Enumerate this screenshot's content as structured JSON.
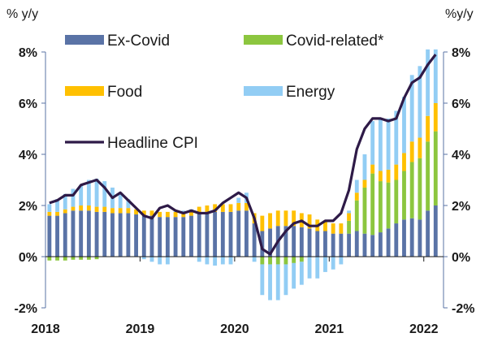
{
  "chart_data": {
    "type": "bar",
    "left_axis_label": "% y/y",
    "right_axis_label": "%y/y",
    "ylim": [
      -2,
      8
    ],
    "y_ticks": [
      -2,
      0,
      2,
      4,
      6,
      8
    ],
    "y_tick_labels": [
      "-2%",
      "0%",
      "2%",
      "4%",
      "6%",
      "8%"
    ],
    "x_tick_labels": [
      "2018",
      "2019",
      "2020",
      "2021",
      "2022"
    ],
    "legend_placement": "top",
    "x_start": "2018-01",
    "months": [
      "2018-01",
      "2018-02",
      "2018-03",
      "2018-04",
      "2018-05",
      "2018-06",
      "2018-07",
      "2018-08",
      "2018-09",
      "2018-10",
      "2018-11",
      "2018-12",
      "2019-01",
      "2019-02",
      "2019-03",
      "2019-04",
      "2019-05",
      "2019-06",
      "2019-07",
      "2019-08",
      "2019-09",
      "2019-10",
      "2019-11",
      "2019-12",
      "2020-01",
      "2020-02",
      "2020-03",
      "2020-04",
      "2020-05",
      "2020-06",
      "2020-07",
      "2020-08",
      "2020-09",
      "2020-10",
      "2020-11",
      "2020-12",
      "2021-01",
      "2021-02",
      "2021-03",
      "2021-04",
      "2021-05",
      "2021-06",
      "2021-07",
      "2021-08",
      "2021-09",
      "2021-10",
      "2021-11",
      "2021-12",
      "2022-01",
      "2022-02"
    ],
    "series": [
      {
        "name": "Ex-Covid",
        "kind": "bar",
        "color": "#5a73a6",
        "values": [
          1.6,
          1.6,
          1.7,
          1.8,
          1.8,
          1.8,
          1.75,
          1.75,
          1.7,
          1.7,
          1.7,
          1.65,
          1.6,
          1.6,
          1.55,
          1.55,
          1.55,
          1.55,
          1.6,
          1.7,
          1.75,
          1.75,
          1.75,
          1.75,
          1.8,
          1.8,
          1.3,
          1.0,
          1.1,
          1.2,
          1.2,
          1.2,
          1.15,
          1.1,
          1.0,
          1.0,
          0.9,
          0.9,
          0.9,
          1.0,
          0.9,
          0.85,
          0.95,
          1.1,
          1.3,
          1.45,
          1.5,
          1.45,
          1.8,
          2.0
        ]
      },
      {
        "name": "Covid-related*",
        "kind": "bar",
        "color": "#8cc63f",
        "values": [
          -0.15,
          -0.15,
          -0.15,
          -0.12,
          -0.12,
          -0.12,
          -0.1,
          0,
          0,
          0,
          0,
          0,
          0,
          0,
          0,
          0,
          0,
          0,
          0,
          0,
          0,
          0,
          0,
          0,
          0,
          0,
          0,
          -0.3,
          -0.3,
          -0.3,
          -0.3,
          -0.25,
          -0.2,
          0,
          0,
          0,
          0,
          0,
          0.5,
          1.2,
          1.8,
          2.4,
          2.0,
          1.8,
          1.7,
          1.9,
          2.2,
          2.4,
          2.7,
          2.9
        ]
      },
      {
        "name": "Food",
        "kind": "bar",
        "color": "#ffc000",
        "values": [
          0.15,
          0.15,
          0.15,
          0.15,
          0.2,
          0.2,
          0.2,
          0.2,
          0.2,
          0.2,
          0.2,
          0.2,
          0.2,
          0.2,
          0.2,
          0.2,
          0.2,
          0.2,
          0.2,
          0.25,
          0.25,
          0.3,
          0.3,
          0.3,
          0.3,
          0.3,
          0.4,
          0.6,
          0.6,
          0.6,
          0.6,
          0.6,
          0.55,
          0.55,
          0.45,
          0.4,
          0.4,
          0.4,
          0.3,
          0.3,
          0.3,
          0.35,
          0.4,
          0.5,
          0.6,
          0.7,
          0.8,
          0.8,
          1.0,
          1.1
        ]
      },
      {
        "name": "Energy",
        "kind": "bar",
        "color": "#92cdf4",
        "values": [
          0.3,
          0.5,
          0.6,
          0.7,
          0.8,
          1.0,
          1.1,
          1.0,
          0.8,
          0.6,
          0.35,
          0.0,
          -0.1,
          -0.2,
          -0.3,
          -0.3,
          0.05,
          0.05,
          0.05,
          -0.2,
          -0.3,
          -0.35,
          -0.3,
          -0.3,
          0.2,
          0.4,
          -0.2,
          -1.2,
          -1.4,
          -1.4,
          -1.2,
          -1.0,
          -0.9,
          -0.85,
          -0.85,
          -0.6,
          -0.5,
          -0.3,
          0.1,
          0.5,
          1.0,
          1.7,
          2.0,
          2.0,
          2.1,
          2.2,
          2.6,
          2.8,
          2.6,
          2.1
        ]
      },
      {
        "name": "Headline CPI",
        "kind": "line",
        "color": "#2e1a47",
        "values": [
          2.1,
          2.2,
          2.4,
          2.4,
          2.8,
          2.9,
          3.0,
          2.7,
          2.3,
          2.5,
          2.2,
          1.9,
          1.6,
          1.5,
          1.9,
          2.0,
          1.8,
          1.7,
          1.8,
          1.7,
          1.7,
          1.8,
          2.1,
          2.3,
          2.5,
          2.3,
          1.5,
          0.3,
          0.1,
          0.6,
          1.0,
          1.3,
          1.4,
          1.2,
          1.2,
          1.4,
          1.4,
          1.7,
          2.6,
          4.2,
          5.0,
          5.4,
          5.4,
          5.3,
          5.4,
          6.2,
          6.8,
          7.0,
          7.5,
          7.9
        ]
      }
    ],
    "gridlines": false
  }
}
